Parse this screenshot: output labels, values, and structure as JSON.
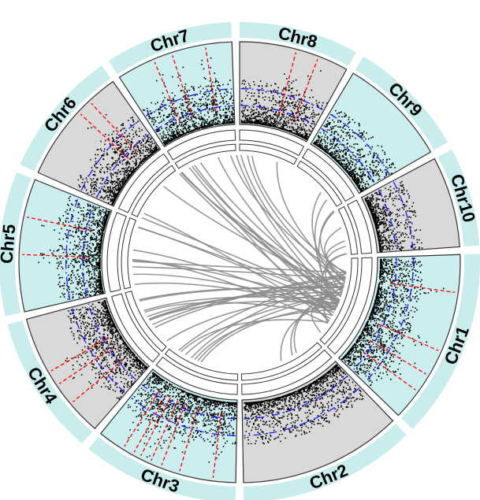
{
  "chart_data": {
    "type": "circos",
    "title": "",
    "colors": {
      "outer_band": "#c9ecec",
      "track_light": "#cdeeee",
      "track_gray": "#d9d9d9",
      "points": "#000000",
      "blue_threshold": "#1a1aff",
      "red_marker": "#ff0000",
      "links": "#8c8c8c",
      "sector_border": "#333333"
    },
    "chromosomes": [
      {
        "name": "Chr1",
        "start_deg": 88,
        "end_deg": 134,
        "track": "light",
        "peaks_deg": [
          98,
          114,
          121,
          126
        ]
      },
      {
        "name": "Chr2",
        "start_deg": 136,
        "end_deg": 179,
        "track": "gray",
        "peaks_deg": []
      },
      {
        "name": "Chr3",
        "start_deg": 181,
        "end_deg": 219,
        "track": "light",
        "peaks_deg": [
          187,
          196,
          201,
          204,
          207,
          209,
          212
        ]
      },
      {
        "name": "Chr4",
        "start_deg": 221,
        "end_deg": 255,
        "track": "gray",
        "peaks_deg": [
          230,
          236,
          240
        ]
      },
      {
        "name": "Chr5",
        "start_deg": 257,
        "end_deg": 292,
        "track": "light",
        "peaks_deg": [
          272,
          282
        ]
      },
      {
        "name": "Chr6",
        "start_deg": 294,
        "end_deg": 325,
        "track": "gray",
        "peaks_deg": [
          313,
          317
        ]
      },
      {
        "name": "Chr7",
        "start_deg": 327,
        "end_deg": 358,
        "track": "light",
        "peaks_deg": [
          337,
          342,
          351
        ]
      },
      {
        "name": "Chr8",
        "start_deg": 360,
        "end_deg": 389,
        "track": "gray",
        "peaks_deg": [
          375,
          381
        ]
      },
      {
        "name": "Chr9",
        "start_deg": 391,
        "end_deg": 420,
        "track": "light",
        "peaks_deg": []
      },
      {
        "name": "Chr10",
        "start_deg": 422,
        "end_deg": 446,
        "track": "gray",
        "peaks_deg": []
      }
    ],
    "threshold_fraction": 0.6,
    "link_count": 60
  }
}
